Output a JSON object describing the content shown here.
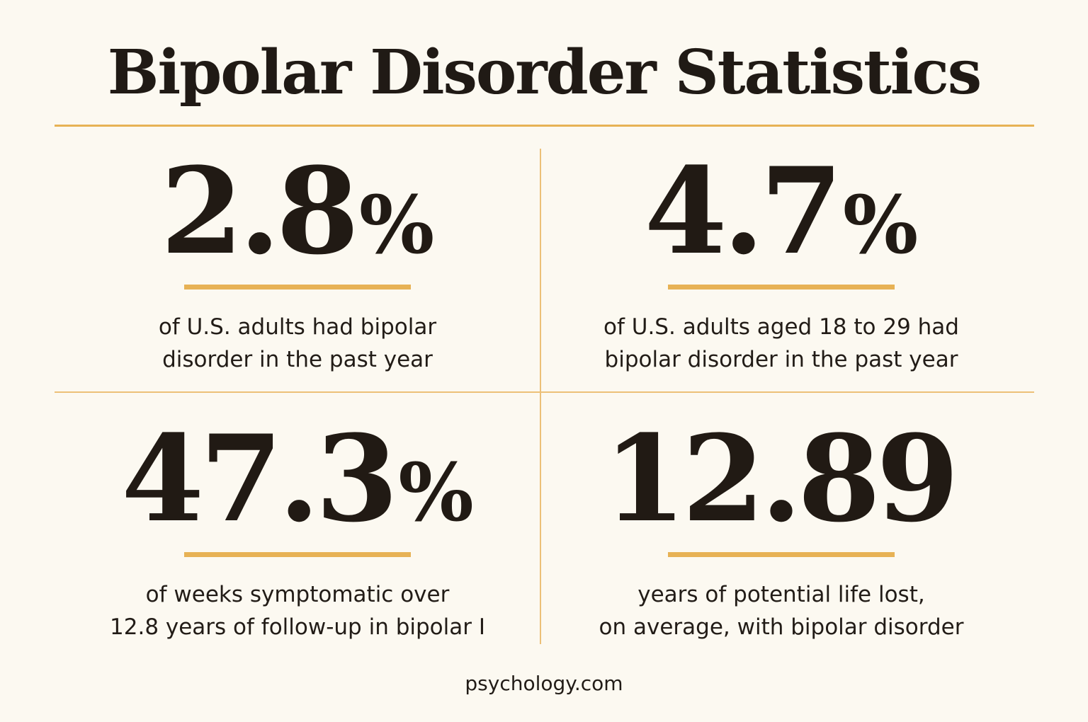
{
  "title": "Bipolar Disorder Statistics",
  "stats": [
    {
      "value": "2.8",
      "unit": "%",
      "caption": "of U.S. adults had bipolar\ndisorder in the past year"
    },
    {
      "value": "4.7",
      "unit": "%",
      "caption": "of U.S. adults aged 18 to 29 had\nbipolar disorder in the past year"
    },
    {
      "value": "47.3",
      "unit": "%",
      "caption": "of weeks symptomatic over\n12.8 years of follow-up in bipolar I"
    },
    {
      "value": "12.89",
      "unit": "",
      "caption": "years of potential life lost,\non average, with bipolar disorder"
    }
  ],
  "source": "psychology.com",
  "colors": {
    "background": "#fcf9f1",
    "accent": "#e7b255",
    "text": "#201a15"
  }
}
